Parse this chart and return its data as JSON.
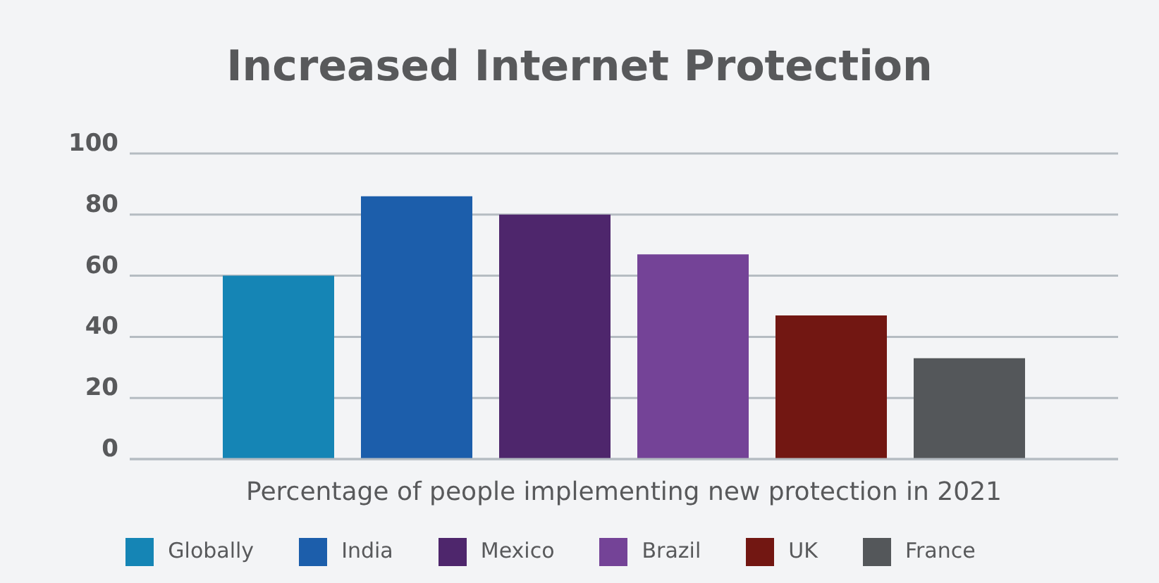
{
  "chart_data": {
    "type": "bar",
    "title": "Increased Internet Protection",
    "xlabel": "Percentage of people implementing new protection in 2021",
    "categories": [
      null
    ],
    "series": [
      {
        "name": "Globally",
        "color": "#1585b5",
        "values": [
          60
        ]
      },
      {
        "name": "India",
        "color": "#1c5eab",
        "values": [
          86
        ]
      },
      {
        "name": "Mexico",
        "color": "#4e266c",
        "values": [
          80
        ]
      },
      {
        "name": "Brazil",
        "color": "#744397",
        "values": [
          67
        ]
      },
      {
        "name": "UK",
        "color": "#721712",
        "values": [
          47
        ]
      },
      {
        "name": "France",
        "color": "#54575a",
        "values": [
          33
        ]
      }
    ],
    "ylim": [
      0,
      100
    ],
    "yticks": [
      0,
      20,
      40,
      60,
      80,
      100
    ],
    "grid": "y",
    "legend": "bottom"
  }
}
